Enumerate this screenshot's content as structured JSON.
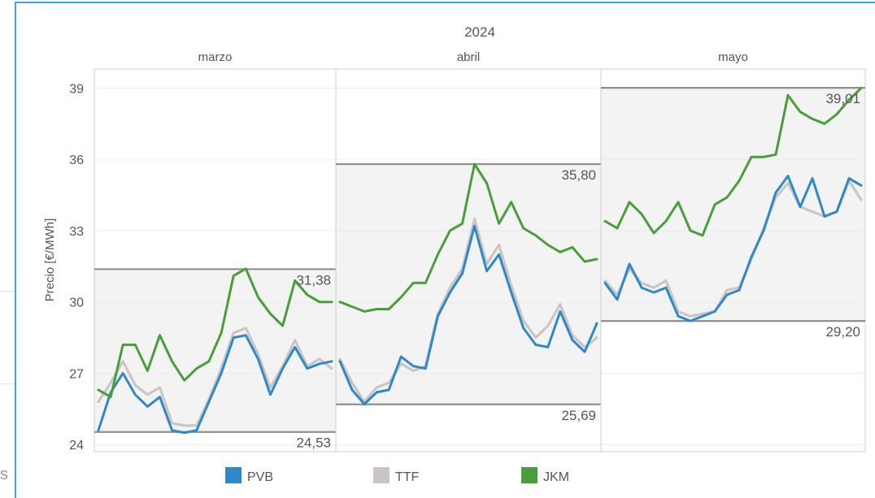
{
  "page": {
    "left_glyph": "s"
  },
  "chart_data": {
    "type": "line",
    "title": "2024",
    "ylabel": "Precio [€/MWh]",
    "xlabel": "",
    "ylim": [
      23.7,
      39.8
    ],
    "yticks": [
      24,
      27,
      30,
      33,
      36,
      39
    ],
    "ytick_labels": [
      "24",
      "27",
      "30",
      "33",
      "36",
      "39"
    ],
    "grid": true,
    "legend_position": "bottom",
    "colors": {
      "PVB": "#2f89c8",
      "TTF": "#cbc6c4",
      "JKM": "#4a9e3a",
      "band": "#f3f3f3",
      "band_edge": "#8f8f8f"
    },
    "panels": [
      {
        "label": "marzo",
        "band": {
          "min": 24.53,
          "max": 31.38,
          "min_label": "24,53",
          "max_label": "31,38"
        },
        "series": [
          {
            "name": "PVB",
            "values": [
              24.6,
              26.2,
              27.0,
              26.1,
              25.6,
              26.0,
              24.6,
              24.5,
              24.6,
              25.8,
              27.0,
              28.5,
              28.6,
              27.6,
              26.1,
              27.2,
              28.1,
              27.2,
              27.4,
              27.5
            ]
          },
          {
            "name": "TTF",
            "values": [
              25.8,
              26.6,
              27.5,
              26.5,
              26.1,
              26.4,
              24.9,
              24.8,
              24.8,
              25.9,
              27.2,
              28.7,
              28.9,
              27.8,
              26.4,
              27.3,
              28.4,
              27.3,
              27.6,
              27.2
            ]
          },
          {
            "name": "JKM",
            "values": [
              26.3,
              26.0,
              28.2,
              28.2,
              27.1,
              28.6,
              27.5,
              26.7,
              27.2,
              27.5,
              28.7,
              31.1,
              31.4,
              30.2,
              29.5,
              29.0,
              30.9,
              30.3,
              30.0,
              30.0
            ]
          }
        ]
      },
      {
        "label": "abril",
        "band": {
          "min": 25.69,
          "max": 35.8,
          "min_label": "25,69",
          "max_label": "35,80"
        },
        "series": [
          {
            "name": "PVB",
            "values": [
              27.5,
              26.3,
              25.7,
              26.2,
              26.3,
              27.7,
              27.3,
              27.2,
              29.4,
              30.4,
              31.2,
              33.2,
              31.3,
              32.0,
              30.4,
              28.9,
              28.2,
              28.1,
              29.6,
              28.4,
              27.9,
              29.1
            ]
          },
          {
            "name": "TTF",
            "values": [
              27.6,
              26.6,
              25.8,
              26.4,
              26.6,
              27.4,
              27.1,
              27.3,
              29.5,
              30.6,
              31.4,
              33.5,
              31.6,
              32.4,
              30.7,
              29.2,
              28.5,
              29.0,
              29.9,
              28.6,
              28.1,
              28.5
            ]
          },
          {
            "name": "JKM",
            "values": [
              30.0,
              29.8,
              29.6,
              29.7,
              29.7,
              30.2,
              30.8,
              30.8,
              32.0,
              33.0,
              33.3,
              35.8,
              35.0,
              33.3,
              34.2,
              33.1,
              32.8,
              32.4,
              32.1,
              32.3,
              31.7,
              31.8
            ]
          }
        ]
      },
      {
        "label": "mayo",
        "band": {
          "min": 29.2,
          "max": 39.01,
          "min_label": "29,20",
          "max_label": "39,01"
        },
        "series": [
          {
            "name": "PVB",
            "values": [
              30.8,
              30.1,
              31.6,
              30.6,
              30.4,
              30.6,
              29.4,
              29.2,
              29.4,
              29.6,
              30.3,
              30.5,
              31.9,
              33.0,
              34.6,
              35.3,
              34.0,
              35.2,
              33.6,
              33.8,
              35.2,
              34.9
            ]
          },
          {
            "name": "TTF",
            "values": [
              30.9,
              30.3,
              31.4,
              30.8,
              30.6,
              30.9,
              29.6,
              29.4,
              29.5,
              29.6,
              30.5,
              30.6,
              31.8,
              33.1,
              34.4,
              35.0,
              34.0,
              33.8,
              33.6,
              33.8,
              35.1,
              34.3
            ]
          },
          {
            "name": "JKM",
            "values": [
              33.4,
              33.1,
              34.2,
              33.7,
              32.9,
              33.4,
              34.2,
              33.0,
              32.8,
              34.1,
              34.4,
              35.1,
              36.1,
              36.1,
              36.2,
              38.7,
              38.0,
              37.7,
              37.5,
              37.9,
              38.5,
              39.0
            ]
          }
        ]
      }
    ],
    "legend": [
      {
        "name": "PVB",
        "label": "PVB"
      },
      {
        "name": "TTF",
        "label": "TTF"
      },
      {
        "name": "JKM",
        "label": "JKM"
      }
    ]
  }
}
